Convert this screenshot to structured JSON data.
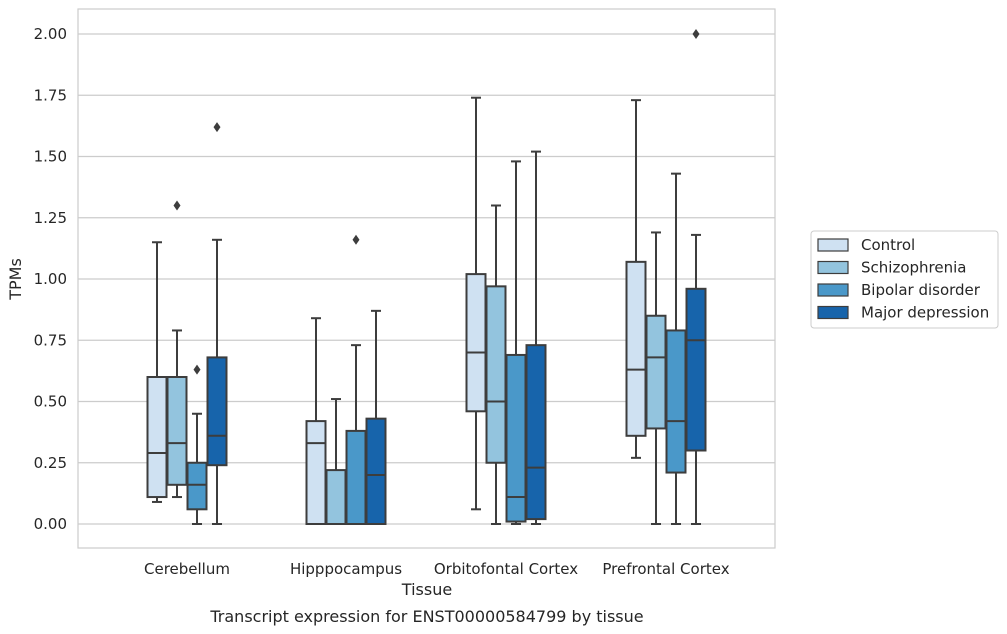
{
  "chart_data": {
    "type": "boxplot",
    "title": "",
    "caption": "Transcript expression for ENST00000584799 by tissue",
    "xlabel": "Tissue",
    "ylabel": "TPMs",
    "ylim": [
      -0.1,
      2.1
    ],
    "yticks": [
      0,
      0.25,
      0.5,
      0.75,
      1.0,
      1.25,
      1.5,
      1.75,
      2.0
    ],
    "ytick_labels": [
      "0.00",
      "0.25",
      "0.50",
      "0.75",
      "1.00",
      "1.25",
      "1.50",
      "1.75",
      "2.00"
    ],
    "grid": "horizontal",
    "legend_position": "right",
    "categories": [
      "Cerebellum",
      "Hipppocampus",
      "Orbitofontal Cortex",
      "Prefrontal Cortex"
    ],
    "series": [
      {
        "name": "Control",
        "color": "#cfe1f2",
        "boxes": [
          {
            "q1": 0.11,
            "median": 0.29,
            "q3": 0.6,
            "whisker_low": 0.09,
            "whisker_high": 1.15,
            "outliers": []
          },
          {
            "q1": 0.0,
            "median": 0.33,
            "q3": 0.42,
            "whisker_low": 0.0,
            "whisker_high": 0.84,
            "outliers": []
          },
          {
            "q1": 0.46,
            "median": 0.7,
            "q3": 1.02,
            "whisker_low": 0.06,
            "whisker_high": 1.74,
            "outliers": []
          },
          {
            "q1": 0.36,
            "median": 0.63,
            "q3": 1.07,
            "whisker_low": 0.27,
            "whisker_high": 1.73,
            "outliers": []
          }
        ]
      },
      {
        "name": "Schizophrenia",
        "color": "#93c4de",
        "boxes": [
          {
            "q1": 0.16,
            "median": 0.33,
            "q3": 0.6,
            "whisker_low": 0.11,
            "whisker_high": 0.79,
            "outliers": [
              1.3
            ]
          },
          {
            "q1": 0.0,
            "median": 0.0,
            "q3": 0.22,
            "whisker_low": 0.0,
            "whisker_high": 0.51,
            "outliers": []
          },
          {
            "q1": 0.25,
            "median": 0.5,
            "q3": 0.97,
            "whisker_low": 0.0,
            "whisker_high": 1.3,
            "outliers": []
          },
          {
            "q1": 0.39,
            "median": 0.68,
            "q3": 0.85,
            "whisker_low": 0.0,
            "whisker_high": 1.19,
            "outliers": []
          }
        ]
      },
      {
        "name": "Bipolar disorder",
        "color": "#4a98c9",
        "boxes": [
          {
            "q1": 0.06,
            "median": 0.16,
            "q3": 0.25,
            "whisker_low": 0.0,
            "whisker_high": 0.45,
            "outliers": [
              0.63
            ]
          },
          {
            "q1": 0.0,
            "median": 0.0,
            "q3": 0.38,
            "whisker_low": 0.0,
            "whisker_high": 0.73,
            "outliers": [
              1.16
            ]
          },
          {
            "q1": 0.01,
            "median": 0.11,
            "q3": 0.69,
            "whisker_low": 0.0,
            "whisker_high": 1.48,
            "outliers": []
          },
          {
            "q1": 0.21,
            "median": 0.42,
            "q3": 0.79,
            "whisker_low": 0.0,
            "whisker_high": 1.43,
            "outliers": []
          }
        ]
      },
      {
        "name": "Major depression",
        "color": "#1764ab",
        "boxes": [
          {
            "q1": 0.24,
            "median": 0.36,
            "q3": 0.68,
            "whisker_low": 0.0,
            "whisker_high": 1.16,
            "outliers": [
              1.62
            ]
          },
          {
            "q1": 0.0,
            "median": 0.2,
            "q3": 0.43,
            "whisker_low": 0.0,
            "whisker_high": 0.87,
            "outliers": []
          },
          {
            "q1": 0.02,
            "median": 0.23,
            "q3": 0.73,
            "whisker_low": 0.0,
            "whisker_high": 1.52,
            "outliers": []
          },
          {
            "q1": 0.3,
            "median": 0.75,
            "q3": 0.96,
            "whisker_low": 0.0,
            "whisker_high": 1.18,
            "outliers": [
              2.0
            ]
          }
        ]
      }
    ]
  }
}
